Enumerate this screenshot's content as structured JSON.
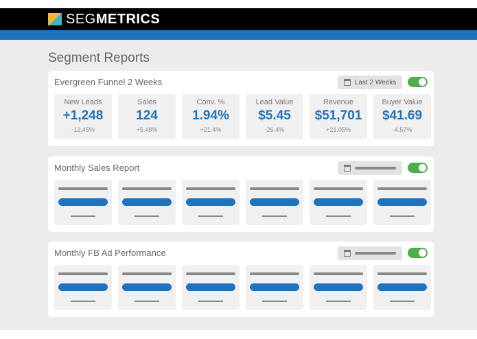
{
  "brand": {
    "name_light": "SEG",
    "name_bold": "METRICS"
  },
  "page_title": "Segment Reports",
  "reports": [
    {
      "title": "Evergreen Funnel 2 Weeks",
      "date_range": "Last 2 Weeks",
      "enabled": true,
      "metrics": [
        {
          "label": "New Leads",
          "value": "+1,248",
          "change": "-12.45%"
        },
        {
          "label": "Sales",
          "value": "124",
          "change": "+5.48%"
        },
        {
          "label": "Conv. %",
          "value": "1.94%",
          "change": "+21.4%"
        },
        {
          "label": "Lead Value",
          "value": "$5.45",
          "change": "-26.4%"
        },
        {
          "label": "Revenue",
          "value": "$51,701",
          "change": "+21.05%"
        },
        {
          "label": "Buyer Value",
          "value": "$41.69",
          "change": "-4.57%"
        }
      ]
    },
    {
      "title": "Monthly Sales Report",
      "enabled": true
    },
    {
      "title": "Monthly FB Ad Performance",
      "enabled": true
    }
  ],
  "colors": {
    "accent": "#1f73be",
    "toggle_on": "#4cae4c"
  }
}
